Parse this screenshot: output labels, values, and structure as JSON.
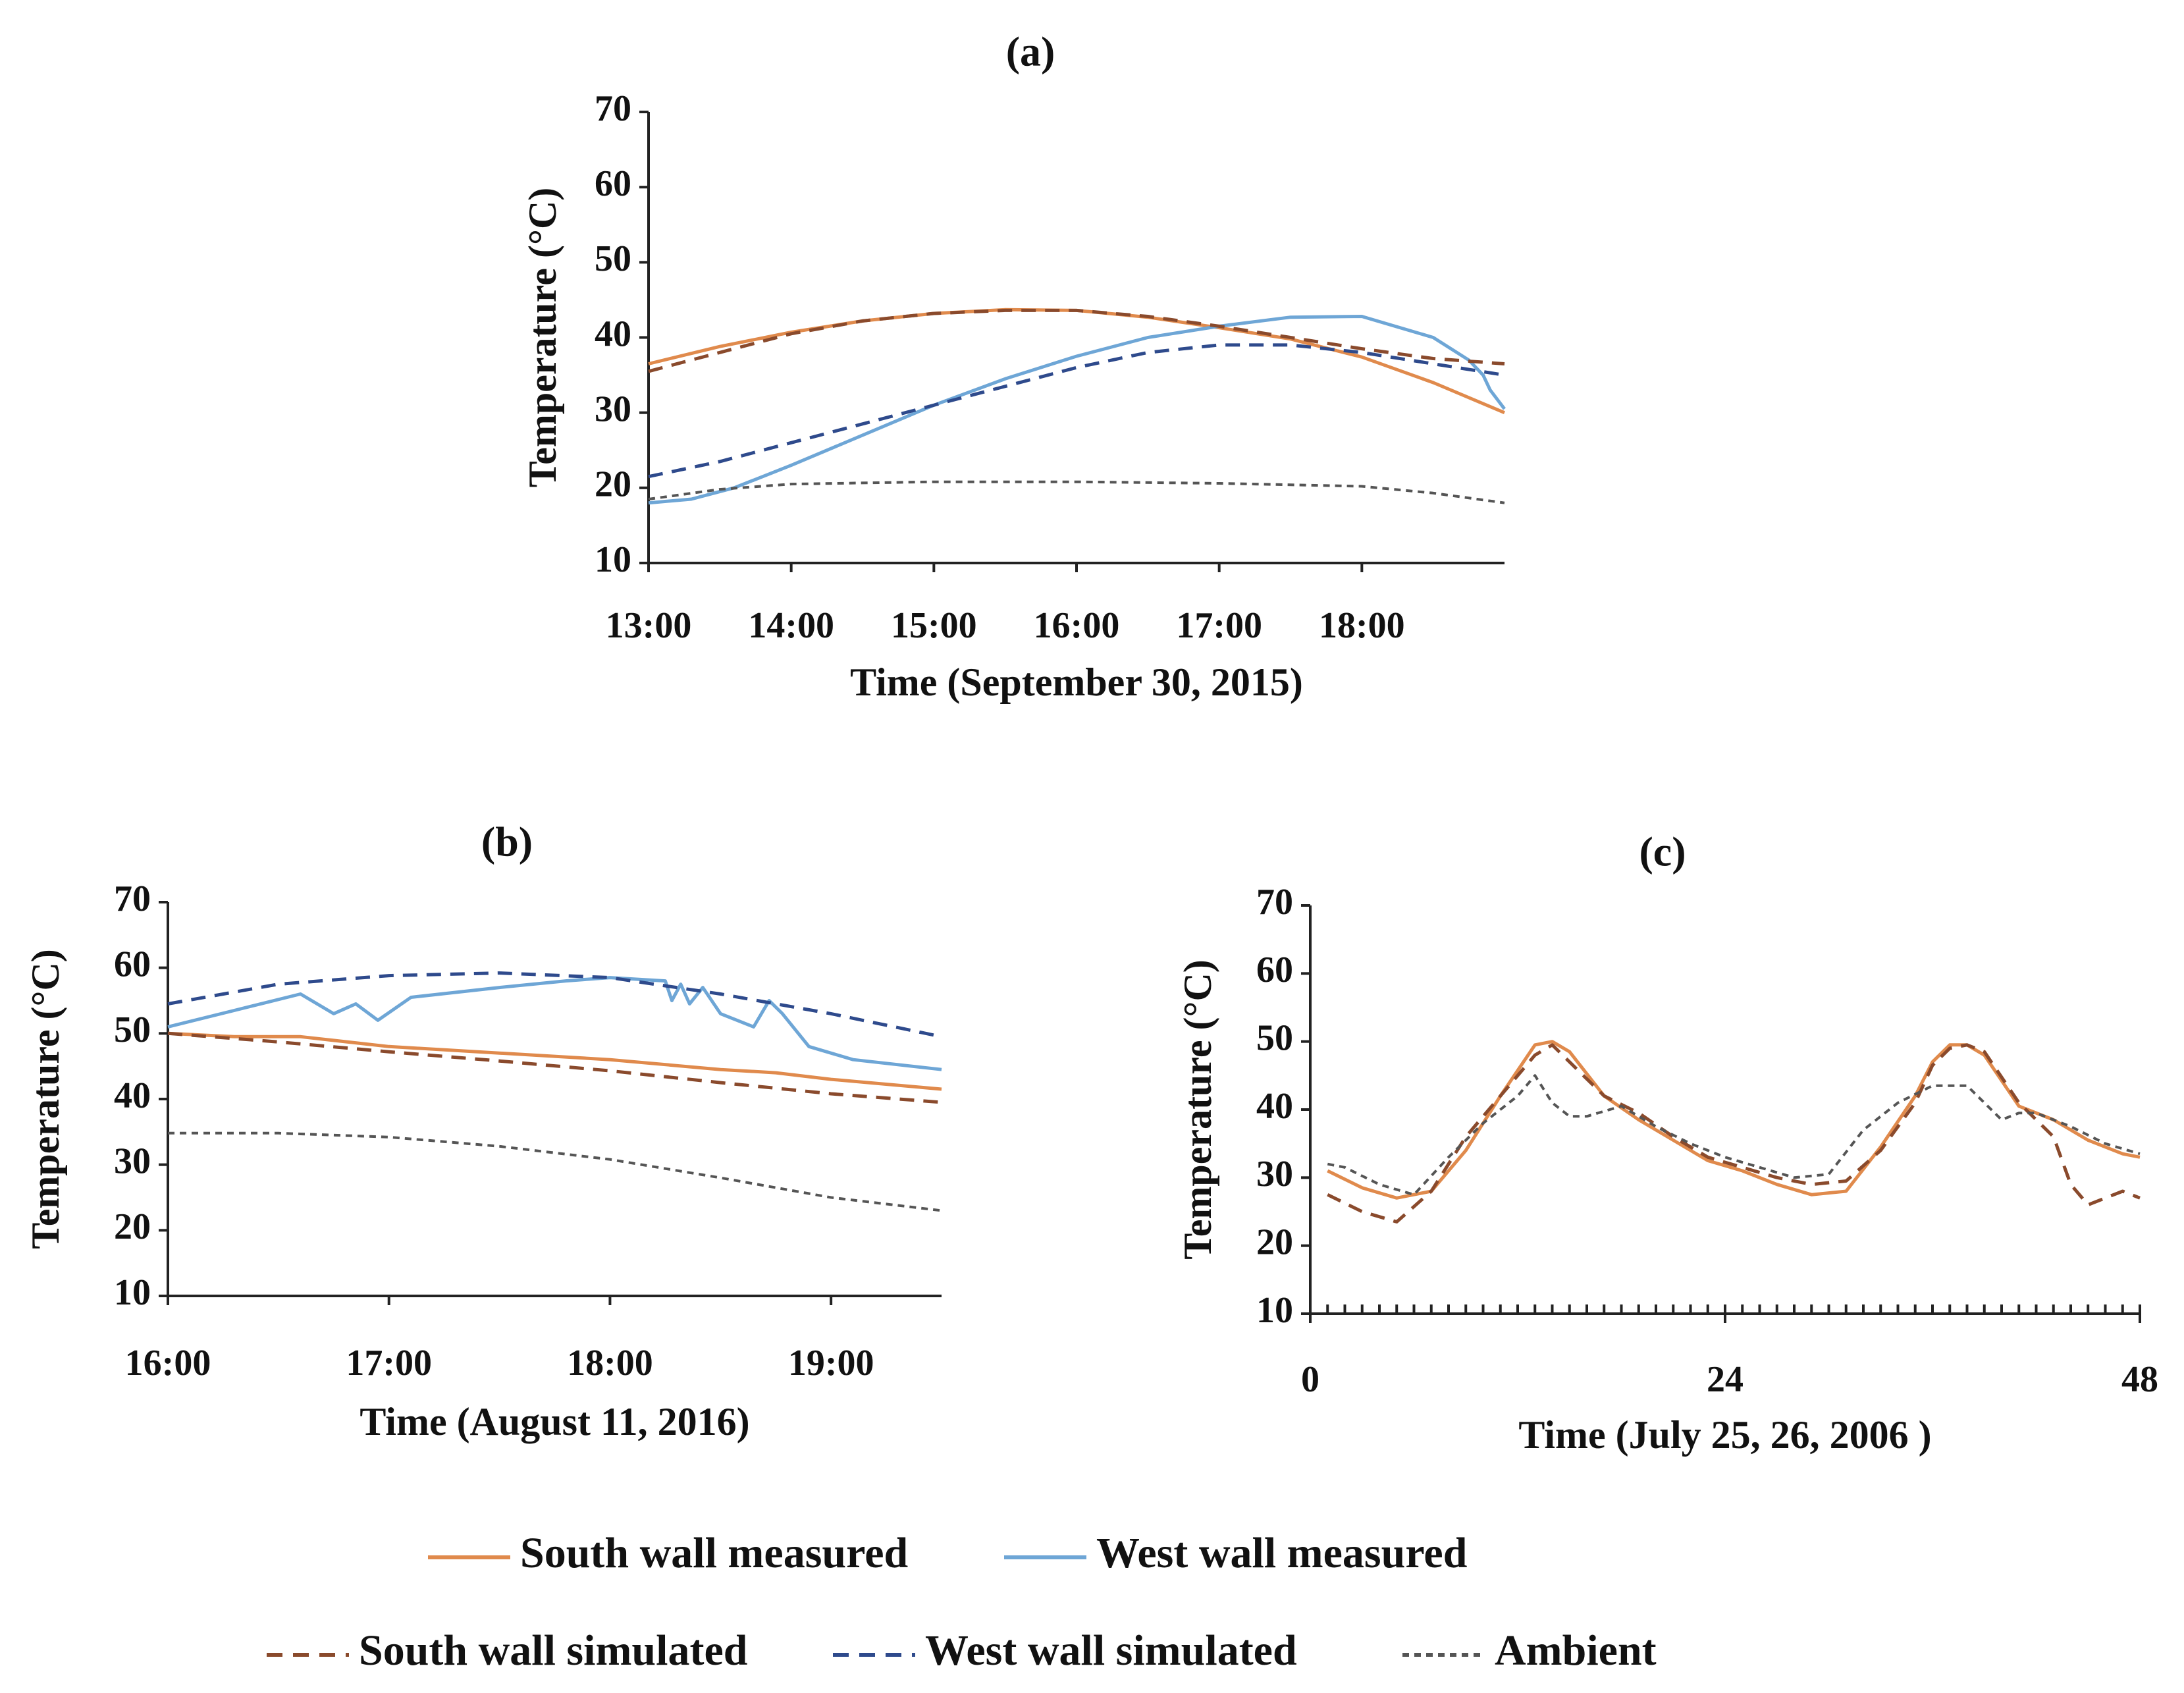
{
  "figure": {
    "colors": {
      "south_measured": "#e08a4c",
      "west_measured": "#6ea6d6",
      "south_simulated": "#8a4a2c",
      "west_simulated": "#2e4a8c",
      "ambient": "#555555"
    },
    "legend": [
      {
        "key": "south_measured",
        "label": "South wall measured",
        "style": "solid"
      },
      {
        "key": "west_measured",
        "label": "West wall measured",
        "style": "solid"
      },
      {
        "key": "south_simulated",
        "label": "South wall simulated",
        "style": "dashed"
      },
      {
        "key": "west_simulated",
        "label": "West wall simulated",
        "style": "dashed"
      },
      {
        "key": "ambient",
        "label": "Ambient",
        "style": "dotted"
      }
    ]
  },
  "chart_data": [
    {
      "id": "a",
      "type": "line",
      "title": "(a)",
      "xlabel": "Time (September 30, 2015)",
      "ylabel": "Temperature (°C)",
      "xlim": [
        13,
        19
      ],
      "ylim": [
        10,
        70
      ],
      "xticks": [
        13,
        14,
        15,
        16,
        17,
        18
      ],
      "xtick_labels": [
        "13:00",
        "14:00",
        "15:00",
        "16:00",
        "17:00",
        "18:00"
      ],
      "yticks": [
        10,
        20,
        30,
        40,
        50,
        60,
        70
      ],
      "series": [
        {
          "key": "south_measured",
          "x": [
            13,
            13.5,
            14,
            14.5,
            15,
            15.5,
            16,
            16.5,
            17,
            17.5,
            18,
            18.5,
            19
          ],
          "y": [
            36.5,
            38.8,
            40.7,
            42.2,
            43.2,
            43.7,
            43.6,
            42.7,
            41.3,
            39.8,
            37.4,
            34,
            30
          ]
        },
        {
          "key": "west_measured",
          "x": [
            13,
            13.3,
            13.6,
            14,
            14.5,
            15,
            15.5,
            16,
            16.5,
            17,
            17.5,
            18,
            18.5,
            18.75,
            18.85,
            18.9,
            19
          ],
          "y": [
            18,
            18.5,
            20,
            23,
            27,
            31,
            34.5,
            37.5,
            40,
            41.5,
            42.7,
            42.8,
            40,
            37,
            35,
            33,
            30.5
          ]
        },
        {
          "key": "south_simulated",
          "x": [
            13,
            13.5,
            14,
            14.5,
            15,
            15.5,
            16,
            16.5,
            17,
            17.5,
            18,
            18.5,
            19
          ],
          "y": [
            35.5,
            38,
            40.5,
            42.2,
            43.2,
            43.6,
            43.6,
            42.8,
            41.5,
            40,
            38.5,
            37.2,
            36.5
          ]
        },
        {
          "key": "west_simulated",
          "x": [
            13,
            13.5,
            14,
            14.5,
            15,
            15.5,
            16,
            16.5,
            17,
            17.5,
            18,
            18.5,
            19
          ],
          "y": [
            21.5,
            23.5,
            26,
            28.5,
            31,
            33.5,
            36,
            38,
            39,
            39,
            38,
            36.5,
            35
          ]
        },
        {
          "key": "ambient",
          "x": [
            13,
            13.5,
            14,
            15,
            16,
            17,
            18,
            18.5,
            19
          ],
          "y": [
            18.5,
            19.8,
            20.5,
            20.8,
            20.8,
            20.6,
            20.2,
            19.3,
            18
          ]
        }
      ]
    },
    {
      "id": "b",
      "type": "line",
      "title": "(b)",
      "xlabel": "Time (August 11, 2016)",
      "ylabel": "Temperature (°C)",
      "xlim": [
        16,
        19.5
      ],
      "ylim": [
        10,
        70
      ],
      "xticks": [
        16,
        17,
        18,
        19
      ],
      "xtick_labels": [
        "16:00",
        "17:00",
        "18:00",
        "19:00"
      ],
      "yticks": [
        10,
        20,
        30,
        40,
        50,
        60,
        70
      ],
      "series": [
        {
          "key": "south_measured",
          "x": [
            16,
            16.3,
            16.6,
            17,
            17.5,
            18,
            18.5,
            18.75,
            19,
            19.5
          ],
          "y": [
            50,
            49.5,
            49.5,
            48,
            47,
            46,
            44.5,
            44,
            43,
            41.5
          ]
        },
        {
          "key": "west_measured",
          "x": [
            16,
            16.3,
            16.6,
            16.75,
            16.85,
            16.95,
            17.1,
            17.5,
            17.8,
            18,
            18.25,
            18.28,
            18.32,
            18.36,
            18.42,
            18.5,
            18.65,
            18.72,
            18.78,
            18.9,
            19.1,
            19.5
          ],
          "y": [
            51,
            53.5,
            56,
            53,
            54.5,
            52,
            55.5,
            57,
            58,
            58.5,
            58,
            55,
            57.5,
            54.5,
            57,
            53,
            51,
            55,
            53,
            48,
            46,
            44.5
          ]
        },
        {
          "key": "south_simulated",
          "x": [
            16,
            16.5,
            17,
            17.5,
            18,
            18.5,
            19,
            19.5
          ],
          "y": [
            50,
            48.7,
            47.2,
            45.8,
            44.3,
            42.5,
            40.8,
            39.5
          ]
        },
        {
          "key": "west_simulated",
          "x": [
            16,
            16.5,
            17,
            17.5,
            18,
            18.5,
            19,
            19.5
          ],
          "y": [
            54.5,
            57.5,
            58.8,
            59.2,
            58.5,
            56,
            53,
            49.5
          ]
        },
        {
          "key": "ambient",
          "x": [
            16,
            16.5,
            17,
            17.5,
            18,
            18.5,
            19,
            19.5
          ],
          "y": [
            34.8,
            34.8,
            34.2,
            32.8,
            30.8,
            28,
            25,
            23
          ]
        }
      ]
    },
    {
      "id": "c",
      "type": "line",
      "title": "(c)",
      "xlabel": "Time (July 25, 26, 2006 )",
      "ylabel": "Temperature (°C)",
      "xlim": [
        0,
        48
      ],
      "ylim": [
        10,
        70
      ],
      "xticks": [
        0,
        24,
        48
      ],
      "xtick_labels": [
        "0",
        "24",
        "48"
      ],
      "yticks": [
        10,
        20,
        30,
        40,
        50,
        60,
        70
      ],
      "series": [
        {
          "key": "south_measured",
          "x": [
            1,
            3,
            5,
            7,
            9,
            11,
            13,
            14,
            15,
            17,
            19,
            21,
            23,
            25,
            27,
            29,
            31,
            33,
            35,
            36,
            37,
            38,
            39,
            41,
            43,
            45,
            47,
            48
          ],
          "y": [
            31,
            28.5,
            27,
            28,
            34,
            42,
            49.5,
            50,
            48.5,
            42,
            38.5,
            35.5,
            32.5,
            31,
            29,
            27.5,
            28,
            34.5,
            42,
            47,
            49.5,
            49.5,
            48,
            40.5,
            38.5,
            35.5,
            33.5,
            33
          ]
        },
        {
          "key": "south_simulated",
          "x": [
            1,
            3,
            5,
            7,
            9,
            11,
            13,
            14,
            15,
            17,
            19,
            21,
            23,
            25,
            27,
            29,
            31,
            33,
            35,
            36,
            37,
            38,
            39,
            41,
            43,
            44,
            45,
            46,
            47,
            48
          ],
          "y": [
            27.5,
            25,
            23.5,
            28,
            36,
            42,
            48,
            49.5,
            47,
            42,
            39.5,
            36,
            33,
            31.5,
            30,
            29,
            29.5,
            34,
            41,
            46.5,
            49,
            49.5,
            48.5,
            41,
            36,
            29,
            26,
            27,
            28,
            27
          ]
        },
        {
          "key": "ambient",
          "x": [
            1,
            2,
            4,
            6,
            8,
            10,
            12,
            13,
            14,
            15,
            16,
            18,
            20,
            22,
            24,
            26,
            28,
            30,
            32,
            34,
            36,
            38,
            39,
            40,
            41,
            42,
            44,
            46,
            48
          ],
          "y": [
            32,
            31.5,
            29,
            27.5,
            33,
            38,
            42,
            45,
            41,
            39,
            39,
            40.5,
            37.5,
            35,
            33,
            31.5,
            30,
            30.5,
            37,
            41,
            43.5,
            43.5,
            41,
            38.5,
            39.5,
            39.5,
            37.5,
            35,
            33.5
          ]
        }
      ]
    }
  ]
}
